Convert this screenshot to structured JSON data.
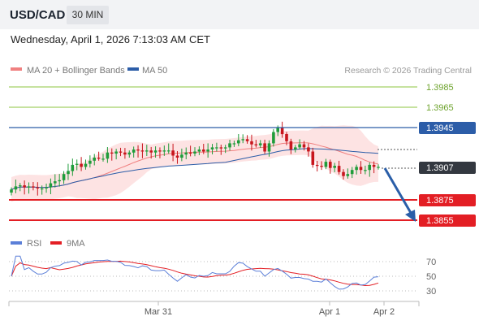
{
  "header": {
    "pair": "USD/CAD",
    "timeframe": "30 MIN",
    "datetime": "Wednesday, April 1, 2026 7:13:03 AM CET"
  },
  "legend": {
    "ma20": "MA 20 + Bollinger Bands",
    "ma50": "MA 50",
    "credit": "Research © 2026 Trading Central"
  },
  "colors": {
    "ma20": "#f08080",
    "band_fill": "#fde3e3",
    "ma50": "#2c5da8",
    "resistance": "#8cc63f",
    "pivot": "#2c5da8",
    "support": "#e31e24",
    "arrow": "#2a5ea8",
    "rsi": "#5b7fd8",
    "rsi_ma": "#e31e24",
    "candle_up": "#1f9c3a",
    "candle_down": "#c8161d"
  },
  "levels": [
    {
      "value": "1.3985",
      "kind": "resistance"
    },
    {
      "value": "1.3965",
      "kind": "resistance"
    },
    {
      "value": "1.3945",
      "kind": "pivot"
    },
    {
      "value": "1.3907",
      "kind": "last"
    },
    {
      "value": "1.3875",
      "kind": "support"
    },
    {
      "value": "1.3855",
      "kind": "support"
    }
  ],
  "rsi_panel": {
    "legend_rsi": "RSI",
    "legend_ma": "9MA",
    "levels": [
      "70",
      "50",
      "30"
    ]
  },
  "x_axis": {
    "labels": [
      "Mar 31",
      "Apr 1",
      "Apr 2"
    ]
  },
  "chart_data": {
    "type": "candlestick",
    "price_range": [
      1.3845,
      1.3995
    ],
    "close": [
      1.3885,
      1.3888,
      1.3889,
      1.3887,
      1.3888,
      1.3887,
      1.3886,
      1.3886,
      1.3887,
      1.3891,
      1.3893,
      1.3894,
      1.39,
      1.3903,
      1.3909,
      1.391,
      1.3907,
      1.391,
      1.3913,
      1.3916,
      1.3915,
      1.3915,
      1.3921,
      1.392,
      1.3922,
      1.3921,
      1.3919,
      1.3921,
      1.3924,
      1.3923,
      1.3922,
      1.3923,
      1.3921,
      1.3923,
      1.3922,
      1.3923,
      1.3923,
      1.3918,
      1.3916,
      1.3919,
      1.3921,
      1.392,
      1.3922,
      1.3924,
      1.3922,
      1.3924,
      1.3926,
      1.3926,
      1.3925,
      1.3926,
      1.393,
      1.393,
      1.3933,
      1.3934,
      1.3932,
      1.3929,
      1.3928,
      1.393,
      1.3922,
      1.393,
      1.3941,
      1.3945,
      1.3939,
      1.3932,
      1.3924,
      1.3926,
      1.3929,
      1.3926,
      1.3922,
      1.3909,
      1.3908,
      1.3907,
      1.3912,
      1.3906,
      1.3908,
      1.3902,
      1.3898,
      1.39,
      1.3904,
      1.3907,
      1.3904,
      1.3904,
      1.3909,
      1.3907,
      1.3907
    ],
    "levels": [
      1.3985,
      1.3965,
      1.3945,
      1.3907,
      1.3875,
      1.3855
    ],
    "forecast": {
      "from": 1.3907,
      "to": 1.3855
    },
    "rsi": {
      "range": [
        20,
        80
      ],
      "levels": [
        70,
        50,
        30
      ],
      "x_labels": [
        "Mar 31",
        "Apr 1",
        "Apr 2"
      ]
    }
  }
}
